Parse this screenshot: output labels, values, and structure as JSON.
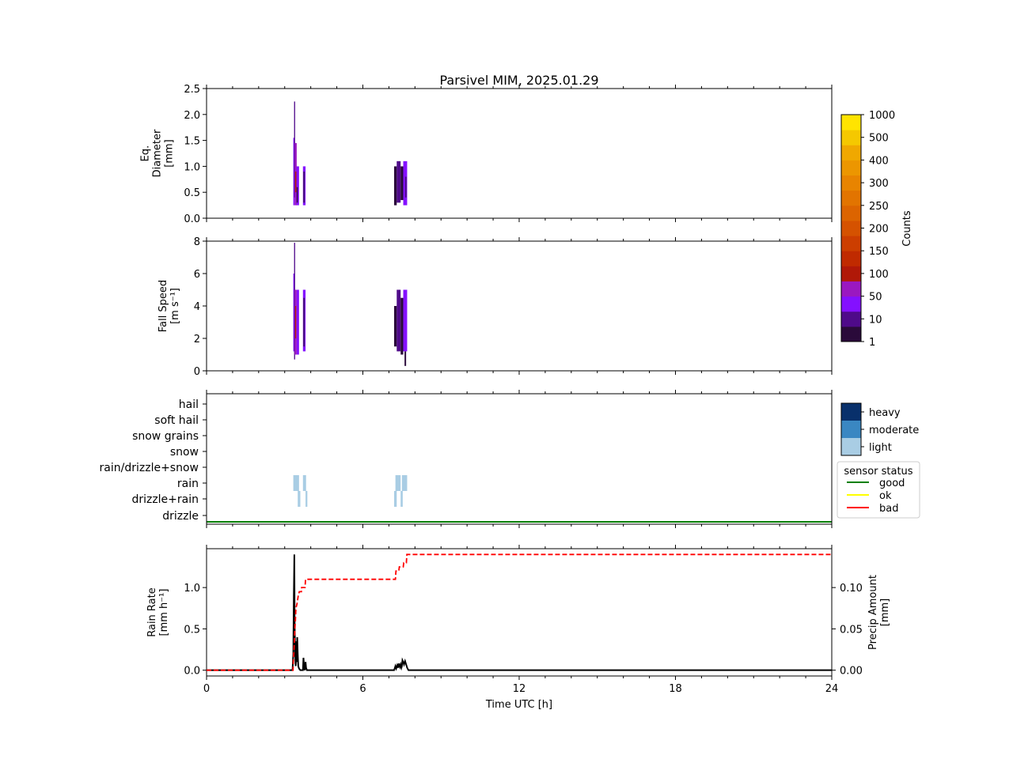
{
  "title": "Parsivel MIM, 2025.01.29",
  "colors": {
    "counts_bins": [
      "#2a0a3a",
      "#4f0a8a",
      "#8410ff",
      "#9a18c0",
      "#b01808",
      "#c02a00",
      "#cc3e00",
      "#d55200",
      "#dc6400",
      "#e27400",
      "#e88400",
      "#ec9600",
      "#f0a800",
      "#f5c800",
      "#ffe400"
    ],
    "intensity": {
      "light": "#a9cde4",
      "moderate": "#3a87c2",
      "heavy": "#08306b"
    },
    "status": {
      "good": "#008000",
      "ok": "#ffff00",
      "bad": "#ff0000"
    },
    "rain_rate_line": "#000000",
    "precip_line": "#ff0000"
  },
  "chart_data": [
    {
      "id": "diameter",
      "type": "heatmap",
      "ylabel_lines": [
        "Eq.",
        "Diameter",
        "[mm]"
      ],
      "xlim": [
        0,
        24
      ],
      "ylim": [
        0,
        2.5
      ],
      "yticks": [
        "0.0",
        "0.5",
        "1.0",
        "1.5",
        "2.0",
        "2.5"
      ],
      "ytick_values": [
        0,
        0.5,
        1.0,
        1.5,
        2.0,
        2.5
      ],
      "cells": [
        {
          "t0": 3.33,
          "t1": 3.38,
          "y0": 0.25,
          "y1": 1.55,
          "bin": 2
        },
        {
          "t0": 3.36,
          "t1": 3.4,
          "y0": 0.4,
          "y1": 2.25,
          "bin": 1
        },
        {
          "t0": 3.38,
          "t1": 3.46,
          "y0": 0.25,
          "y1": 1.45,
          "bin": 3
        },
        {
          "t0": 3.4,
          "t1": 3.45,
          "y0": 0.5,
          "y1": 0.9,
          "bin": 4
        },
        {
          "t0": 3.45,
          "t1": 3.55,
          "y0": 0.25,
          "y1": 1.0,
          "bin": 2
        },
        {
          "t0": 3.46,
          "t1": 3.5,
          "y0": 0.3,
          "y1": 0.6,
          "bin": 0
        },
        {
          "t0": 3.7,
          "t1": 3.8,
          "y0": 0.25,
          "y1": 1.0,
          "bin": 2
        },
        {
          "t0": 3.72,
          "t1": 3.76,
          "y0": 0.3,
          "y1": 0.9,
          "bin": 0
        },
        {
          "t0": 7.2,
          "t1": 7.3,
          "y0": 0.25,
          "y1": 1.0,
          "bin": 0
        },
        {
          "t0": 7.3,
          "t1": 7.45,
          "y0": 0.3,
          "y1": 1.1,
          "bin": 1
        },
        {
          "t0": 7.45,
          "t1": 7.55,
          "y0": 0.35,
          "y1": 1.0,
          "bin": 0
        },
        {
          "t0": 7.55,
          "t1": 7.7,
          "y0": 0.25,
          "y1": 1.1,
          "bin": 2
        },
        {
          "t0": 7.62,
          "t1": 7.68,
          "y0": 0.4,
          "y1": 0.8,
          "bin": 1
        }
      ]
    },
    {
      "id": "fallspeed",
      "type": "heatmap",
      "ylabel_lines": [
        "Fall Speed",
        "[m s⁻¹]"
      ],
      "xlim": [
        0,
        24
      ],
      "ylim": [
        0,
        8
      ],
      "yticks": [
        "0",
        "2",
        "4",
        "6",
        "8"
      ],
      "ytick_values": [
        0,
        2,
        4,
        6,
        8
      ],
      "cells": [
        {
          "t0": 3.33,
          "t1": 3.38,
          "y0": 1.2,
          "y1": 6.0,
          "bin": 2
        },
        {
          "t0": 3.36,
          "t1": 3.4,
          "y0": 0.7,
          "y1": 7.9,
          "bin": 1
        },
        {
          "t0": 3.38,
          "t1": 3.46,
          "y0": 1.0,
          "y1": 5.0,
          "bin": 3
        },
        {
          "t0": 3.4,
          "t1": 3.44,
          "y0": 2.0,
          "y1": 4.0,
          "bin": 4
        },
        {
          "t0": 3.46,
          "t1": 3.55,
          "y0": 1.0,
          "y1": 5.0,
          "bin": 2
        },
        {
          "t0": 3.7,
          "t1": 3.8,
          "y0": 1.2,
          "y1": 5.0,
          "bin": 2
        },
        {
          "t0": 3.72,
          "t1": 3.76,
          "y0": 1.5,
          "y1": 4.5,
          "bin": 0
        },
        {
          "t0": 7.2,
          "t1": 7.3,
          "y0": 1.5,
          "y1": 4.0,
          "bin": 0
        },
        {
          "t0": 7.3,
          "t1": 7.45,
          "y0": 1.2,
          "y1": 5.0,
          "bin": 1
        },
        {
          "t0": 7.45,
          "t1": 7.55,
          "y0": 1.0,
          "y1": 4.5,
          "bin": 0
        },
        {
          "t0": 7.55,
          "t1": 7.7,
          "y0": 1.2,
          "y1": 5.0,
          "bin": 2
        },
        {
          "t0": 7.6,
          "t1": 7.66,
          "y0": 0.3,
          "y1": 1.2,
          "bin": 0
        }
      ]
    },
    {
      "id": "ptype",
      "type": "heatmap",
      "categories": [
        "drizzle",
        "drizzle+rain",
        "rain",
        "rain/drizzle+snow",
        "snow",
        "snow grains",
        "soft hail",
        "hail"
      ],
      "xlim": [
        0,
        24
      ],
      "cells": [
        {
          "t0": 3.33,
          "t1": 3.55,
          "cat": "rain",
          "intensity": "light"
        },
        {
          "t0": 3.7,
          "t1": 3.82,
          "cat": "rain",
          "intensity": "light"
        },
        {
          "t0": 3.5,
          "t1": 3.6,
          "cat": "drizzle+rain",
          "intensity": "light"
        },
        {
          "t0": 3.8,
          "t1": 3.87,
          "cat": "drizzle+rain",
          "intensity": "light"
        },
        {
          "t0": 7.25,
          "t1": 7.45,
          "cat": "rain",
          "intensity": "light"
        },
        {
          "t0": 7.5,
          "t1": 7.7,
          "cat": "rain",
          "intensity": "light"
        },
        {
          "t0": 7.2,
          "t1": 7.3,
          "cat": "drizzle+rain",
          "intensity": "light"
        },
        {
          "t0": 7.45,
          "t1": 7.53,
          "cat": "drizzle+rain",
          "intensity": "light"
        }
      ],
      "status_series": [
        {
          "name": "good",
          "t0": 0,
          "t1": 24
        }
      ],
      "intensity_legend": [
        "heavy",
        "moderate",
        "light"
      ],
      "status_legend": {
        "title": "sensor status",
        "items": [
          "good",
          "ok",
          "bad"
        ]
      }
    },
    {
      "id": "rain",
      "type": "line",
      "xlabel": "Time UTC [h]",
      "xlim": [
        0,
        24
      ],
      "xticks": [
        "0",
        "6",
        "12",
        "18",
        "24"
      ],
      "xtick_values": [
        0,
        6,
        12,
        18,
        24
      ],
      "ylabel_left_lines": [
        "Rain Rate",
        "[mm h⁻¹]"
      ],
      "ylabel_right_lines": [
        "Precip Amount",
        "[mm]"
      ],
      "ylim_left": [
        -0.07,
        1.47
      ],
      "ylim_right": [
        -0.007,
        0.147
      ],
      "yticks_left": [
        "0.0",
        "0.5",
        "1.0"
      ],
      "ytick_left_values": [
        0,
        0.5,
        1.0
      ],
      "yticks_right": [
        "0.00",
        "0.05",
        "0.10"
      ],
      "ytick_right_values": [
        0,
        0.05,
        0.1
      ],
      "series": [
        {
          "axis": "left",
          "x": [
            0,
            3.3,
            3.33,
            3.35,
            3.37,
            3.38,
            3.4,
            3.42,
            3.43,
            3.45,
            3.47,
            3.48,
            3.5,
            3.52,
            3.55,
            3.6,
            3.7,
            3.72,
            3.75,
            3.77,
            3.8,
            3.82,
            3.85,
            3.9,
            7.2,
            7.25,
            7.28,
            7.32,
            7.35,
            7.38,
            7.42,
            7.45,
            7.48,
            7.5,
            7.52,
            7.55,
            7.58,
            7.62,
            7.65,
            7.7,
            7.75,
            24
          ],
          "y": [
            0,
            0,
            0.2,
            0.9,
            1.4,
            0.6,
            0.2,
            0.05,
            0.1,
            0.35,
            0.1,
            0.4,
            0.2,
            0.05,
            0.02,
            0,
            0,
            0.15,
            0.02,
            0,
            0.1,
            0.03,
            0,
            0,
            0,
            0.05,
            0.02,
            0.06,
            0.03,
            0.08,
            0.04,
            0.07,
            0.03,
            0.05,
            0.12,
            0.1,
            0.07,
            0.11,
            0.08,
            0.03,
            0,
            0
          ]
        },
        {
          "axis": "right",
          "x": [
            0,
            3.32,
            3.33,
            3.35,
            3.37,
            3.39,
            3.41,
            3.43,
            3.47,
            3.52,
            3.56,
            3.64,
            3.65,
            3.78,
            3.8,
            7.25,
            7.27,
            7.38,
            7.4,
            7.55,
            7.57,
            7.67,
            7.69,
            24
          ],
          "y": [
            0,
            0,
            0.01,
            0.02,
            0.035,
            0.05,
            0.06,
            0.075,
            0.08,
            0.09,
            0.095,
            0.095,
            0.1,
            0.1,
            0.11,
            0.11,
            0.12,
            0.12,
            0.125,
            0.125,
            0.13,
            0.13,
            0.14,
            0.14
          ]
        }
      ]
    }
  ],
  "colorbar": {
    "label": "Counts",
    "ticks": [
      "1",
      "10",
      "50",
      "100",
      "150",
      "200",
      "250",
      "300",
      "400",
      "500",
      "1000"
    ]
  }
}
